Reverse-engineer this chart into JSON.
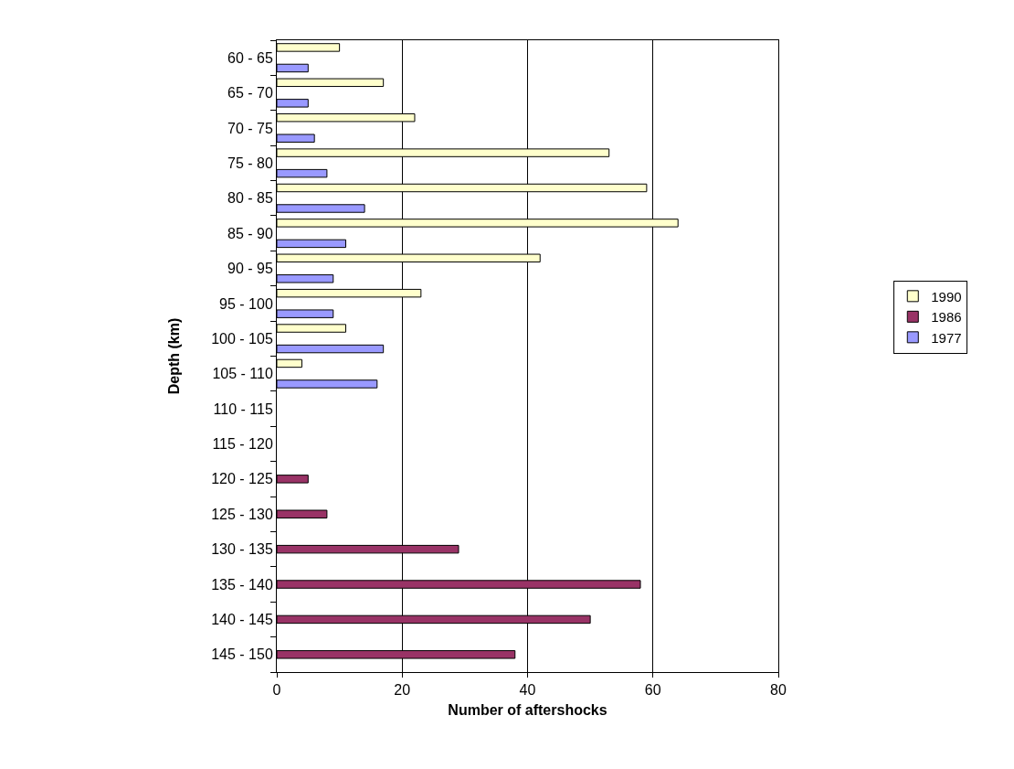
{
  "chart_data": {
    "type": "bar",
    "orientation": "horizontal",
    "xlabel": "Number of aftershocks",
    "ylabel": "Depth (km)",
    "categories": [
      "60 - 65",
      "65 - 70",
      "70 - 75",
      "75 - 80",
      "80 - 85",
      "85 - 90",
      "90 - 95",
      "95 - 100",
      "100 - 105",
      "105 - 110",
      "110 - 115",
      "115 - 120",
      "120 - 125",
      "125 - 130",
      "130 - 135",
      "135 - 140",
      "140 - 145",
      "145 - 150"
    ],
    "series": [
      {
        "name": "1990",
        "color": "#ffffcc",
        "values": [
          10,
          17,
          22,
          53,
          59,
          64,
          42,
          23,
          11,
          4,
          null,
          null,
          null,
          null,
          null,
          null,
          null,
          null
        ]
      },
      {
        "name": "1986",
        "color": "#993366",
        "values": [
          null,
          null,
          null,
          null,
          null,
          null,
          null,
          null,
          null,
          null,
          null,
          null,
          5,
          8,
          29,
          58,
          50,
          38
        ]
      },
      {
        "name": "1977",
        "color": "#9999ff",
        "values": [
          5,
          5,
          6,
          8,
          14,
          11,
          9,
          9,
          17,
          16,
          null,
          null,
          null,
          null,
          null,
          null,
          null,
          null
        ]
      }
    ],
    "xlim": [
      0,
      80
    ],
    "xticks": [
      0,
      20,
      40,
      60,
      80
    ],
    "grid": "x",
    "legend": "right"
  }
}
